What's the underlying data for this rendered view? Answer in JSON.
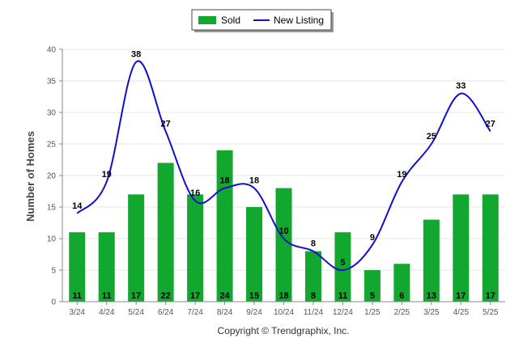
{
  "chart_data": {
    "type": "bar",
    "categories": [
      "3/24",
      "4/24",
      "5/24",
      "6/24",
      "7/24",
      "8/24",
      "9/24",
      "10/24",
      "11/24",
      "12/24",
      "1/25",
      "2/25",
      "3/25",
      "4/25",
      "5/25"
    ],
    "series": [
      {
        "name": "Sold",
        "type": "bar",
        "color": "#12a82f",
        "values": [
          11,
          11,
          17,
          22,
          17,
          24,
          15,
          18,
          8,
          11,
          5,
          6,
          13,
          17,
          17
        ]
      },
      {
        "name": "New Listing",
        "type": "line",
        "color": "#1010cc",
        "values": [
          14,
          19,
          38,
          27,
          16,
          18,
          18,
          10,
          8,
          5,
          9,
          19,
          25,
          33,
          27
        ]
      }
    ],
    "ylabel": "Number of Homes",
    "xlabel": "",
    "ylim": [
      0,
      40
    ],
    "yticks": [
      0,
      5,
      10,
      15,
      20,
      25,
      30,
      35,
      40
    ],
    "grid": true,
    "legend": "top-center"
  },
  "footer": {
    "credit": "Copyright © Trendgraphix, Inc."
  }
}
